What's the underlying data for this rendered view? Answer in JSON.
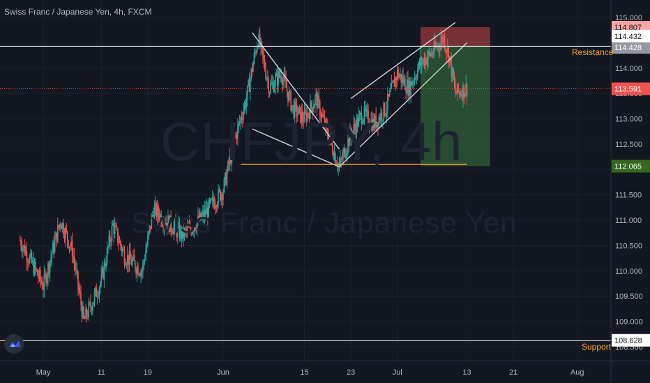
{
  "header": {
    "symbol_line": "Swiss Franc / Japanese Yen, 4h, FXCM"
  },
  "watermark": {
    "ticker": "CHFJPY, 4h",
    "name": "Swiss Franc / Japanese Yen"
  },
  "colors": {
    "background": "#131722",
    "up": "#26a69a",
    "down": "#ef5350",
    "pattern_lines": "#d1d4dc",
    "orange": "#f5a623",
    "current_price": "#ef5350",
    "resistance": "#ffffff",
    "support": "#ffffff"
  },
  "levels": {
    "resistance": {
      "label": "Resistance",
      "price": 114.432
    },
    "support": {
      "label": "Support",
      "price": 108.628
    },
    "current": {
      "price": 113.591
    },
    "stop_loss": {
      "price": 114.807
    },
    "entry": {
      "price": 114.428
    },
    "target": {
      "price": 112.065
    }
  },
  "axis_labels": {
    "p114807": "114.807",
    "p114432": "114.432",
    "p114428": "114.428",
    "p113591": "113.591",
    "p112065": "112.065",
    "p108628": "108.628"
  },
  "chart_data": {
    "type": "candlestick",
    "y_ticks": [
      "115.000",
      "114.500",
      "114.000",
      "113.500",
      "113.000",
      "112.500",
      "112.000",
      "111.500",
      "111.000",
      "110.500",
      "110.000",
      "109.500",
      "109.000",
      "108.500"
    ],
    "x_ticks": [
      "May",
      "11",
      "19",
      "Jun",
      "15",
      "23",
      "Jul",
      "13",
      "21",
      "Aug"
    ],
    "ylim": [
      108.3,
      115.3
    ],
    "grid": true,
    "price_path": [
      [
        "Apr 27",
        110.6
      ],
      [
        "May 1",
        109.7
      ],
      [
        "May 4",
        111.0
      ],
      [
        "May 6",
        110.4
      ],
      [
        "May 8",
        109.0
      ],
      [
        "May 11",
        109.8
      ],
      [
        "May 13",
        110.9
      ],
      [
        "May 15",
        110.3
      ],
      [
        "May 18",
        110.0
      ],
      [
        "May 20",
        111.2
      ],
      [
        "May 22",
        111.0
      ],
      [
        "May 25",
        110.7
      ],
      [
        "May 28",
        111.0
      ],
      [
        "Jun 1",
        111.6
      ],
      [
        "Jun 3",
        112.6
      ],
      [
        "Jun 5",
        113.4
      ],
      [
        "Jun 7",
        114.6
      ],
      [
        "Jun 9",
        113.6
      ],
      [
        "Jun 11",
        113.9
      ],
      [
        "Jun 13",
        113.2
      ],
      [
        "Jun 15",
        113.0
      ],
      [
        "Jun 17",
        113.4
      ],
      [
        "Jun 19",
        112.7
      ],
      [
        "Jun 21",
        112.05
      ],
      [
        "Jun 23",
        112.7
      ],
      [
        "Jun 25",
        113.1
      ],
      [
        "Jun 27",
        112.9
      ],
      [
        "Jun 29",
        113.2
      ],
      [
        "Jul 1",
        113.9
      ],
      [
        "Jul 3",
        113.6
      ],
      [
        "Jul 5",
        114.1
      ],
      [
        "Jul 7",
        114.3
      ],
      [
        "Jul 9",
        114.6
      ],
      [
        "Jul 10",
        114.2
      ],
      [
        "Jul 11",
        113.5
      ],
      [
        "Jul 13",
        113.6
      ]
    ],
    "patterns": {
      "falling_wedge_upper": [
        [
          "Jun 6",
          114.7
        ],
        [
          "Jun 21",
          112.4
        ]
      ],
      "falling_wedge_lower": [
        [
          "Jun 6",
          112.8
        ],
        [
          "Jun 21",
          112.05
        ]
      ],
      "rising_wedge_lower": [
        [
          "Jun 21",
          112.05
        ],
        [
          "Jul 13",
          114.5
        ]
      ],
      "rising_wedge_upper": [
        [
          "Jun 23",
          113.4
        ],
        [
          "Jul 11",
          114.9
        ]
      ],
      "support_line": [
        [
          "Jun 4",
          112.1
        ],
        [
          "Jul 13",
          112.1
        ]
      ]
    },
    "position": {
      "type": "short",
      "start": "Jul 5",
      "end": "Jul 17",
      "entry": 114.428,
      "stop": 114.807,
      "target": 112.065
    }
  }
}
